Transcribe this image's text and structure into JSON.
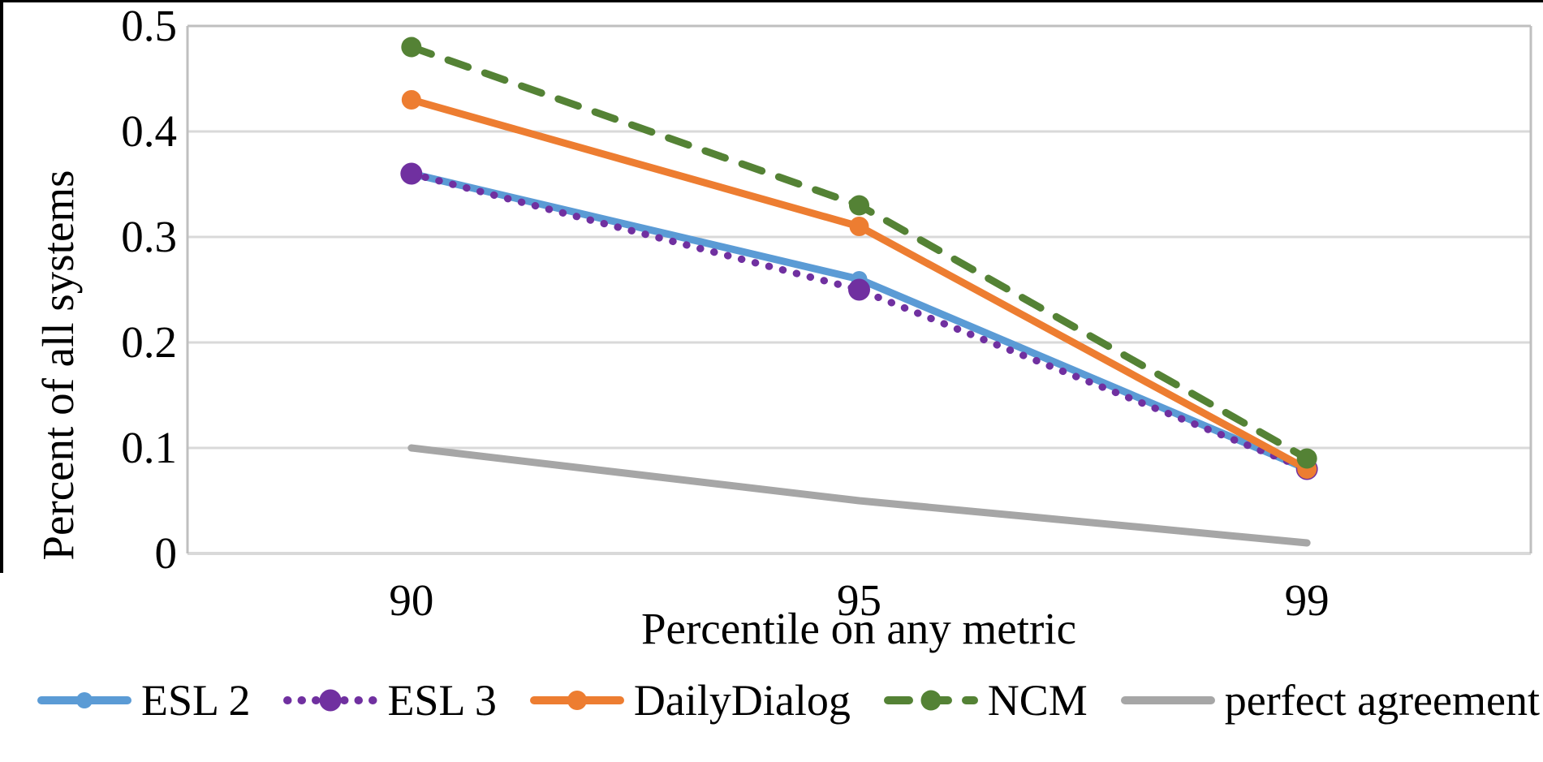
{
  "figure": {
    "background": "#ffffff",
    "top_rule_color": "#000000",
    "left_rule_color": "#000000"
  },
  "chart_data": {
    "type": "line",
    "title": "",
    "xlabel": "Percentile on any metric",
    "ylabel": "Percent of all systems",
    "categories": [
      "90",
      "95",
      "99"
    ],
    "ylim": [
      0,
      0.5
    ],
    "yticks": [
      0,
      0.1,
      0.2,
      0.3,
      0.4,
      0.5
    ],
    "ytick_labels": [
      "0",
      "0.1",
      "0.2",
      "0.3",
      "0.4",
      "0.5"
    ],
    "grid": "horizontal",
    "legend_position": "bottom",
    "axis_color": "#BFBFBF",
    "gridline_color": "#D9D9D9",
    "series": [
      {
        "name": "ESL 2",
        "color": "#5B9BD5",
        "line_style": "solid",
        "marker": "circle",
        "marker_r": 10,
        "values": [
          0.36,
          0.26,
          0.08
        ]
      },
      {
        "name": "ESL 3",
        "color": "#7030A0",
        "line_style": "dotted",
        "marker": "circle",
        "marker_r": 13.5,
        "values": [
          0.36,
          0.25,
          0.08
        ]
      },
      {
        "name": "DailyDialog",
        "color": "#ED7D31",
        "line_style": "solid",
        "marker": "circle",
        "marker_r": 12,
        "values": [
          0.43,
          0.31,
          0.08
        ]
      },
      {
        "name": "NCM",
        "color": "#548235",
        "line_style": "dashed",
        "marker": "circle",
        "marker_r": 12.5,
        "values": [
          0.48,
          0.33,
          0.09
        ]
      },
      {
        "name": "perfect agreement",
        "color": "#A6A6A6",
        "line_style": "solid",
        "marker": "none",
        "marker_r": 0,
        "values": [
          0.1,
          0.05,
          0.01
        ]
      }
    ]
  }
}
